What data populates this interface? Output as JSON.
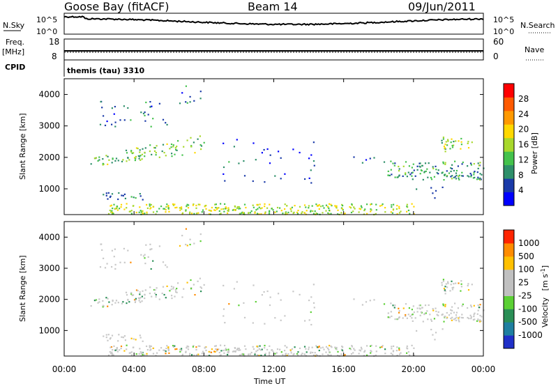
{
  "header": {
    "station": "Goose Bay (fitACF)",
    "beam": "Beam 14",
    "date": "09/Jun/2011"
  },
  "panels": {
    "nsky_label": "N.Sky",
    "nsearch_label": "N.Search",
    "freq_label": "Freq.",
    "freq_unit": "[MHz]",
    "nave_label": "Nave",
    "cpid_label": "CPID",
    "cpid_text": "themis (tau) 3310",
    "noise_ticks_left": [
      "10^5",
      "10^0"
    ],
    "noise_ticks_right": [
      "10^5",
      "10^0"
    ],
    "freq_ticks": [
      "18",
      "8"
    ],
    "nave_ticks": [
      "60",
      "0"
    ]
  },
  "colorbars": {
    "power": {
      "label": "Power [dB]",
      "ticks": [
        "28",
        "24",
        "20",
        "16",
        "12",
        "8",
        "4"
      ],
      "colors": [
        "#0000ff",
        "#1a3aa8",
        "#2e8f6a",
        "#44c24c",
        "#a8d82c",
        "#ffd800",
        "#ff9900",
        "#ff5a00",
        "#ff0000"
      ]
    },
    "velocity": {
      "label_main": "Velocity",
      "label_unit": "[m s",
      "label_exp": "-1",
      "label_close": "]",
      "ticks": [
        "1000",
        "500",
        "100",
        "25",
        "-25",
        "-100",
        "-500",
        "-1000"
      ],
      "colors": [
        "#2030c8",
        "#1f7fa0",
        "#2a8f56",
        "#5bd034",
        "#c0c0c0",
        "#c0c0c0",
        "#ffc000",
        "#ff8c00",
        "#ff2400"
      ]
    }
  },
  "chart_data": {
    "type": "heatmap",
    "xlabel": "Time UT",
    "x_ticks": [
      "00:00",
      "04:00",
      "08:00",
      "12:00",
      "16:00",
      "20:00",
      "00:00"
    ],
    "x_range_hours": [
      0,
      24
    ],
    "ylabel": "Slant Range [km]",
    "y_ticks": [
      "4000",
      "3000",
      "2000",
      "1000"
    ],
    "y_tick_values": [
      4000,
      3000,
      2000,
      1000
    ],
    "y_range_km": [
      180,
      4500
    ],
    "echo_regions": [
      {
        "t0": 1.5,
        "t1": 8.0,
        "r0": 1700,
        "r1": 2000,
        "r1_end": 2800,
        "density": 0.55,
        "power": 13
      },
      {
        "t0": 2.0,
        "t1": 6.0,
        "r0": 3000,
        "r1": 3800,
        "density": 0.12,
        "power": 8
      },
      {
        "t0": 6.5,
        "t1": 8.2,
        "r0": 3600,
        "r1": 4400,
        "density": 0.08,
        "power": 6
      },
      {
        "t0": 2.0,
        "t1": 4.5,
        "r0": 650,
        "r1": 900,
        "density": 0.35,
        "power": 8
      },
      {
        "t0": 2.5,
        "t1": 20.0,
        "r0": 200,
        "r1": 550,
        "density": 0.6,
        "power": 16
      },
      {
        "t0": 9.0,
        "t1": 14.5,
        "r0": 1200,
        "r1": 2600,
        "density": 0.05,
        "power": 6
      },
      {
        "t0": 16.5,
        "t1": 18.5,
        "r0": 1800,
        "r1": 2100,
        "density": 0.12,
        "power": 6
      },
      {
        "t0": 18.5,
        "t1": 24.0,
        "r0": 1300,
        "r1": 1900,
        "density": 0.45,
        "power": 10
      },
      {
        "t0": 21.5,
        "t1": 23.5,
        "r0": 2200,
        "r1": 2700,
        "density": 0.35,
        "power": 14
      },
      {
        "t0": 20.0,
        "t1": 22.0,
        "r0": 700,
        "r1": 1100,
        "density": 0.08,
        "power": 7
      }
    ]
  }
}
